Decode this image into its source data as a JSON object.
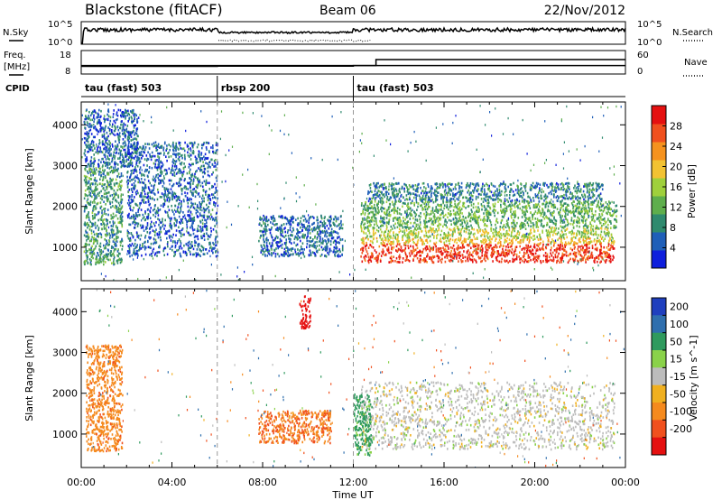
{
  "header": {
    "station": "Blackstone (fitACF)",
    "beam": "Beam 06",
    "date": "22/Nov/2012"
  },
  "labels": {
    "nsky": "N.Sky",
    "nsearch": "N.Search",
    "freq": "Freq.",
    "freq_unit": "[MHz]",
    "nave": "Nave",
    "cpid": "CPID",
    "xlabel": "Time UT"
  },
  "cpid_segments": [
    {
      "start": 0,
      "end": 6,
      "label": "tau (fast) 503"
    },
    {
      "start": 6,
      "end": 12,
      "label": "rbsp 200"
    },
    {
      "start": 12,
      "end": 24,
      "label": "tau (fast) 503"
    }
  ],
  "noise_panel": {
    "left_ticks": [
      "10^5",
      "10^0"
    ],
    "right_ticks": [
      "10^5",
      "10^0"
    ]
  },
  "freq_panel": {
    "left_ticks": [
      18,
      8
    ],
    "right_ticks": [
      60,
      0
    ],
    "freq_MHz": 11,
    "nave_segments": [
      {
        "start": 0,
        "end": 6,
        "nave": 15
      },
      {
        "start": 6,
        "end": 12,
        "nave": 16
      },
      {
        "start": 12,
        "end": 13,
        "nave": 18
      },
      {
        "start": 13,
        "end": 24,
        "nave": 40
      }
    ]
  },
  "chart_data": [
    {
      "type": "heatmap",
      "title": "",
      "xlabel": "Time UT",
      "ylabel": "Slant Range [km]",
      "xlim": [
        0,
        24
      ],
      "ylim": [
        180,
        4560
      ],
      "x_ticks": [
        "00:00",
        "04:00",
        "08:00",
        "12:00",
        "16:00",
        "20:00",
        "00:00"
      ],
      "y_ticks": [
        1000,
        2000,
        3000,
        4000
      ],
      "colorbar": {
        "label": "Power [dB]",
        "ticks": [
          4,
          8,
          12,
          16,
          20,
          24,
          28
        ],
        "range": [
          0,
          32
        ],
        "colors": [
          "#0f1fdc",
          "#1f5fb8",
          "#2f8a6e",
          "#5eae4c",
          "#9fd03c",
          "#f2c232",
          "#f5921e",
          "#f0501e",
          "#e51010"
        ]
      },
      "regions": [
        {
          "t0": 12.3,
          "t1": 23.5,
          "r0": 650,
          "r1": 1250,
          "value": 28
        },
        {
          "t0": 12.3,
          "t1": 23.4,
          "r0": 1250,
          "r1": 1500,
          "value": 16
        },
        {
          "t0": 12.3,
          "t1": 23.6,
          "r0": 1500,
          "r1": 2150,
          "value": 12
        },
        {
          "t0": 12.6,
          "t1": 23.0,
          "r0": 2150,
          "r1": 2600,
          "value": 8
        },
        {
          "t0": 7.8,
          "t1": 11.5,
          "r0": 800,
          "r1": 1800,
          "value": 6
        },
        {
          "t0": 0.1,
          "t1": 1.8,
          "r0": 600,
          "r1": 3000,
          "value": 10
        },
        {
          "t0": 0.1,
          "t1": 2.5,
          "r0": 3000,
          "r1": 4400,
          "value": 6
        },
        {
          "t0": 2.0,
          "t1": 6.0,
          "r0": 800,
          "r1": 3600,
          "value": 6
        }
      ]
    },
    {
      "type": "heatmap",
      "title": "",
      "xlabel": "Time UT",
      "ylabel": "Slant Range [km]",
      "xlim": [
        0,
        24
      ],
      "ylim": [
        180,
        4560
      ],
      "x_ticks": [
        "00:00",
        "04:00",
        "08:00",
        "12:00",
        "16:00",
        "20:00",
        "00:00"
      ],
      "y_ticks": [
        1000,
        2000,
        3000,
        4000
      ],
      "colorbar": {
        "label": "Velocity [m s^-1]",
        "ticks": [
          200,
          100,
          50,
          15,
          -15,
          -50,
          -100,
          -200
        ],
        "colors": [
          "#1f3fbe",
          "#2f6fae",
          "#2f9a5e",
          "#8ad24a",
          "#bcbcbc",
          "#f0b020",
          "#f58a1e",
          "#f0501e",
          "#e51010"
        ]
      },
      "regions": [
        {
          "t0": 12.3,
          "t1": 23.5,
          "r0": 650,
          "r1": 2300,
          "value": 0
        },
        {
          "t0": 12.0,
          "t1": 12.8,
          "r0": 500,
          "r1": 2000,
          "value": 45
        },
        {
          "t0": 9.6,
          "t1": 10.1,
          "r0": 3600,
          "r1": 4400,
          "value": -200
        },
        {
          "t0": 7.8,
          "t1": 11.0,
          "r0": 800,
          "r1": 1600,
          "value": -70
        },
        {
          "t0": 0.2,
          "t1": 1.8,
          "r0": 600,
          "r1": 3200,
          "value": -60
        }
      ]
    }
  ]
}
